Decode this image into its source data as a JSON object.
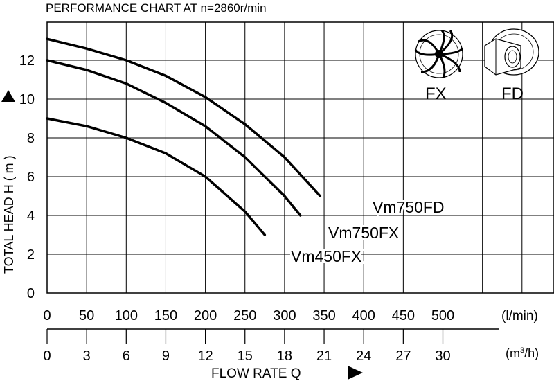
{
  "chart_data": {
    "type": "line",
    "title": "PERFORMANCE  CHART  AT  n=2860r/min",
    "ylabel": "TOTAL HEAD  H ( m )",
    "xlabel": "FLOW  RATE  Q",
    "x_unit": "(l/min)",
    "x2_unit_base": "(m",
    "x2_unit_sup": "3",
    "x2_unit_tail": "/h)",
    "xlim": [
      0,
      600
    ],
    "ylim": [
      0,
      14
    ],
    "y_ticks": [
      0,
      2,
      4,
      6,
      8,
      10,
      12
    ],
    "x_ticks": [
      0,
      50,
      100,
      150,
      200,
      250,
      300,
      350,
      400,
      450,
      500
    ],
    "x2_ticks": [
      0,
      3,
      6,
      9,
      12,
      15,
      18,
      21,
      24,
      27,
      30
    ],
    "grid": true,
    "series": [
      {
        "name": "Vm750FD",
        "x": [
          0,
          50,
          100,
          150,
          200,
          250,
          300,
          345
        ],
        "y": [
          13.1,
          12.6,
          12.0,
          11.2,
          10.1,
          8.7,
          7.0,
          5.0
        ]
      },
      {
        "name": "Vm750FX",
        "x": [
          0,
          50,
          100,
          150,
          200,
          250,
          300,
          320
        ],
        "y": [
          12.0,
          11.5,
          10.8,
          9.8,
          8.6,
          7.0,
          5.0,
          4.0
        ]
      },
      {
        "name": "Vm450FX",
        "x": [
          0,
          50,
          100,
          150,
          200,
          250,
          275
        ],
        "y": [
          9.0,
          8.6,
          8.0,
          7.2,
          6.0,
          4.2,
          3.0
        ]
      }
    ],
    "impeller_labels": [
      "FX",
      "FD"
    ]
  }
}
